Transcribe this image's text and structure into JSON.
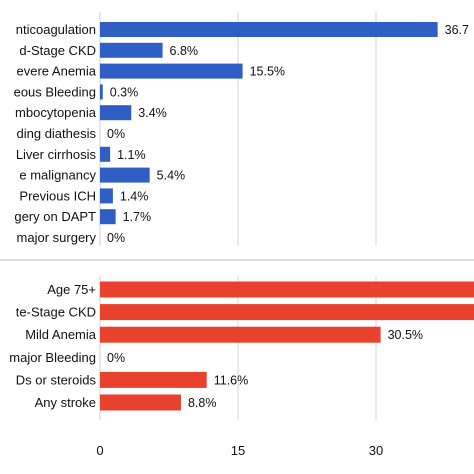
{
  "chart_data": [
    {
      "type": "bar",
      "orientation": "horizontal",
      "color": "#2f5fc4",
      "categories": [
        "nticoagulation",
        "d-Stage CKD",
        "evere Anemia",
        "eous Bleeding",
        "mbocytopenia",
        "ding diathesis",
        "Liver cirrhosis",
        "e malignancy",
        "Previous ICH",
        "gery on DAPT",
        "major surgery"
      ],
      "values": [
        36.7,
        6.8,
        15.5,
        0.3,
        3.4,
        0,
        1.1,
        5.4,
        1.4,
        1.7,
        0
      ],
      "value_labels": [
        "36.7",
        "6.8%",
        "15.5%",
        "0.3%",
        "3.4%",
        "0%",
        "1.1%",
        "5.4%",
        "1.4%",
        "1.7%",
        "0%"
      ],
      "xlim": [
        0,
        40
      ],
      "grid": true
    },
    {
      "type": "bar",
      "orientation": "horizontal",
      "color": "#e8412e",
      "categories": [
        "Age 75+",
        "te-Stage CKD",
        "Mild Anemia",
        "major Bleeding",
        "Ds or steroids",
        "Any stroke"
      ],
      "values": [
        41,
        41,
        30.5,
        0,
        11.6,
        8.8
      ],
      "value_labels": [
        "",
        "",
        "30.5%",
        "0%",
        "11.6%",
        "8.8%"
      ],
      "xlim": [
        0,
        40
      ],
      "xticks": [
        0,
        15,
        30
      ],
      "grid": true
    }
  ]
}
